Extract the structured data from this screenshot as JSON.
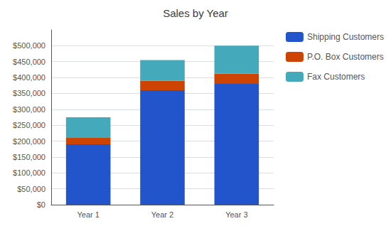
{
  "chart_data": {
    "type": "bar",
    "title": "Sales by Year",
    "categories": [
      "Year 1",
      "Year 2",
      "Year 3"
    ],
    "series": [
      {
        "name": "Shipping Customers",
        "color": "#2255CC",
        "values": [
          190000,
          360000,
          380000
        ]
      },
      {
        "name": "P.O. Box Customers",
        "color": "#CC4400",
        "values": [
          20000,
          30000,
          32000
        ]
      },
      {
        "name": "Fax Customers",
        "color": "#44AABB",
        "values": [
          65000,
          65000,
          88000
        ]
      }
    ],
    "stacked": true,
    "ylim": [
      0,
      550000
    ],
    "yticks": [
      {
        "value": 0,
        "label": "$0"
      },
      {
        "value": 50000,
        "label": "$50,000"
      },
      {
        "value": 100000,
        "label": "$100,000"
      },
      {
        "value": 150000,
        "label": "$150,000"
      },
      {
        "value": 200000,
        "label": "$200,000"
      },
      {
        "value": 250000,
        "label": "$250,000"
      },
      {
        "value": 300000,
        "label": "$300,000"
      },
      {
        "value": 350000,
        "label": "$350,000"
      },
      {
        "value": 400000,
        "label": "$400,000"
      },
      {
        "value": 450000,
        "label": "$450,000"
      },
      {
        "value": 500000,
        "label": "$500,000"
      }
    ],
    "grid": true,
    "legend": "right"
  }
}
